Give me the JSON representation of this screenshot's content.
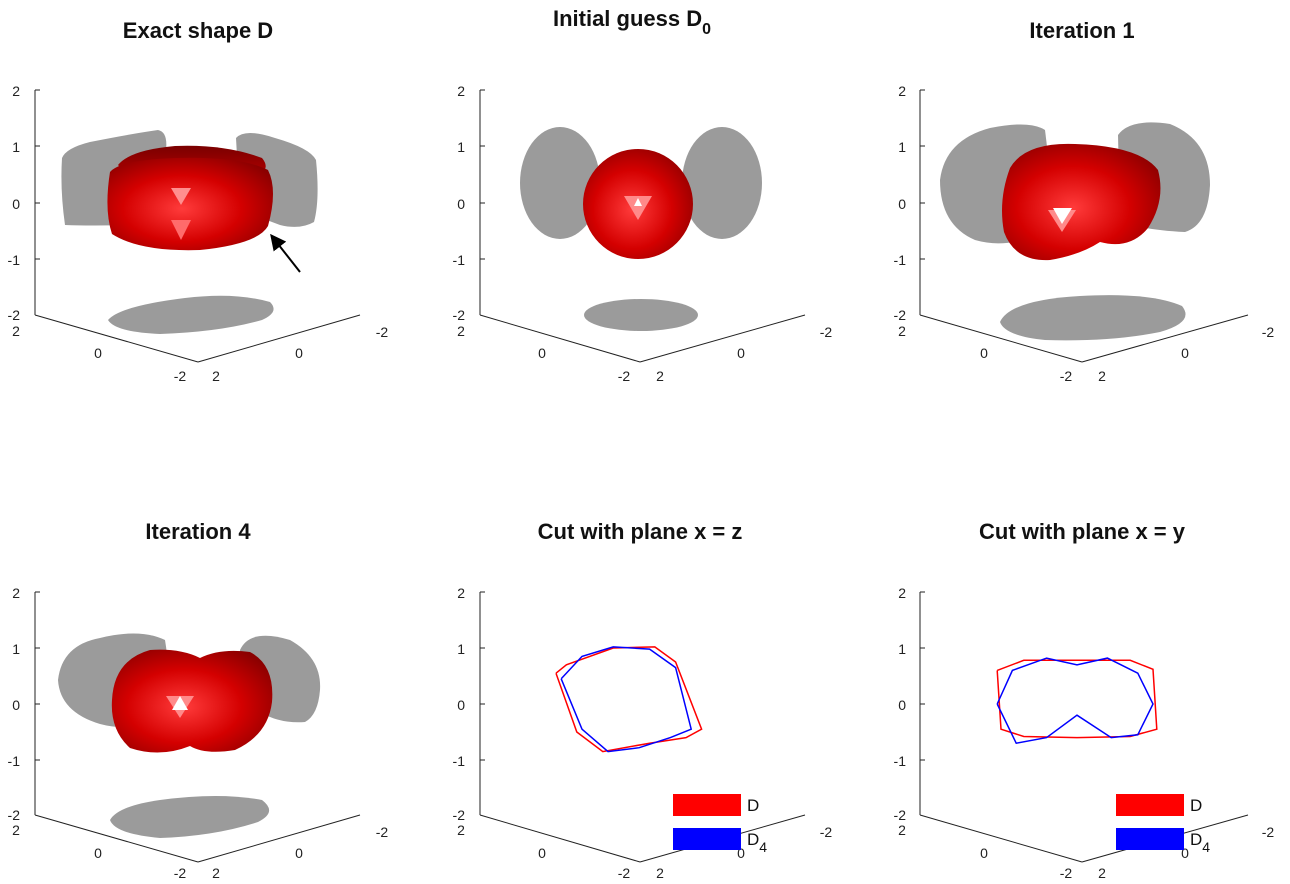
{
  "figure": {
    "panels": [
      {
        "title": "Exact shape D",
        "title_subscript": "",
        "type": "surface3d",
        "axes": {
          "x_ticks": [
            "2",
            "0",
            "-2"
          ],
          "y_ticks": [
            "-2",
            "0",
            "2"
          ],
          "z_ticks": [
            "2",
            "1",
            "0",
            "-1",
            "-2"
          ]
        },
        "shape": "exact",
        "has_arrow": true
      },
      {
        "title": "Initial guess D",
        "title_subscript": "0",
        "type": "surface3d",
        "axes": {
          "x_ticks": [
            "2",
            "0",
            "-2"
          ],
          "y_ticks": [
            "-2",
            "0",
            "2"
          ],
          "z_ticks": [
            "2",
            "1",
            "0",
            "-1",
            "-2"
          ]
        },
        "shape": "sphere",
        "has_arrow": false
      },
      {
        "title": "Iteration 1",
        "title_subscript": "",
        "type": "surface3d",
        "axes": {
          "x_ticks": [
            "2",
            "0",
            "-2"
          ],
          "y_ticks": [
            "-2",
            "0",
            "2"
          ],
          "z_ticks": [
            "2",
            "1",
            "0",
            "-1",
            "-2"
          ]
        },
        "shape": "iter1",
        "has_arrow": false
      },
      {
        "title": "Iteration 4",
        "title_subscript": "",
        "type": "surface3d",
        "axes": {
          "x_ticks": [
            "2",
            "0",
            "-2"
          ],
          "y_ticks": [
            "-2",
            "0",
            "2"
          ],
          "z_ticks": [
            "2",
            "1",
            "0",
            "-1",
            "-2"
          ]
        },
        "shape": "iter4",
        "has_arrow": false
      },
      {
        "title": "Cut with plane x = z",
        "title_subscript": "",
        "type": "cut",
        "axes": {
          "x_ticks": [
            "2",
            "0",
            "-2"
          ],
          "y_ticks": [
            "-2",
            "0",
            "2"
          ],
          "z_ticks": [
            "2",
            "1",
            "0",
            "-1",
            "-2"
          ]
        },
        "legend": [
          {
            "label": "D",
            "sub": "",
            "color": "#ff0000"
          },
          {
            "label": "D",
            "sub": "4",
            "color": "#0000ff"
          }
        ]
      },
      {
        "title": "Cut with plane x = y",
        "title_subscript": "",
        "type": "cut",
        "axes": {
          "x_ticks": [
            "2",
            "0",
            "-2"
          ],
          "y_ticks": [
            "-2",
            "0",
            "2"
          ],
          "z_ticks": [
            "2",
            "1",
            "0",
            "-1",
            "-2"
          ]
        },
        "legend": [
          {
            "label": "D",
            "sub": "",
            "color": "#ff0000"
          },
          {
            "label": "D",
            "sub": "4",
            "color": "#0000ff"
          }
        ]
      }
    ]
  },
  "chart_data": [
    {
      "type": "surface3d",
      "title": "Exact shape D",
      "zlim": [
        -2,
        2
      ],
      "xlim": [
        -2,
        2
      ],
      "ylim": [
        -2,
        2
      ],
      "z_ticks": [
        -2,
        -1,
        0,
        1,
        2
      ],
      "x_ticks": [
        -2,
        0,
        2
      ],
      "y_ticks": [
        -2,
        0,
        2
      ],
      "series": [
        {
          "name": "D",
          "color": "#cc0000"
        }
      ],
      "projections_color": "#999999"
    },
    {
      "type": "surface3d",
      "title": "Initial guess D0",
      "zlim": [
        -2,
        2
      ],
      "xlim": [
        -2,
        2
      ],
      "ylim": [
        -2,
        2
      ],
      "z_ticks": [
        -2,
        -1,
        0,
        1,
        2
      ],
      "series": [
        {
          "name": "D0",
          "color": "#cc0000"
        }
      ],
      "projections_color": "#999999"
    },
    {
      "type": "surface3d",
      "title": "Iteration 1",
      "zlim": [
        -2,
        2
      ],
      "xlim": [
        -2,
        2
      ],
      "ylim": [
        -2,
        2
      ],
      "z_ticks": [
        -2,
        -1,
        0,
        1,
        2
      ],
      "projections_color": "#999999"
    },
    {
      "type": "surface3d",
      "title": "Iteration 4",
      "zlim": [
        -2,
        2
      ],
      "xlim": [
        -2,
        2
      ],
      "ylim": [
        -2,
        2
      ],
      "z_ticks": [
        -2,
        -1,
        0,
        1,
        2
      ],
      "projections_color": "#999999"
    },
    {
      "type": "line",
      "title": "Cut with plane x = z",
      "zlim": [
        -2,
        2
      ],
      "z_ticks": [
        -2,
        -1,
        0,
        1,
        2
      ],
      "legend_position": "bottom-right",
      "series": [
        {
          "name": "D",
          "color": "#ff0000",
          "u": [
            -1.5,
            -1.3,
            -0.4,
            0.4,
            0.8,
            1.3,
            1.0,
            0.3,
            -0.6,
            -1.1,
            -1.5
          ],
          "z": [
            0.55,
            0.7,
            1.0,
            1.02,
            0.75,
            -0.45,
            -0.6,
            -0.7,
            -0.85,
            -0.5,
            0.55
          ]
        },
        {
          "name": "D4",
          "color": "#0000ff",
          "u": [
            -1.4,
            -1.0,
            -0.4,
            0.3,
            0.8,
            1.1,
            0.7,
            0.1,
            -0.5,
            -1.0,
            -1.4
          ],
          "z": [
            0.45,
            0.85,
            1.02,
            0.98,
            0.65,
            -0.45,
            -0.6,
            -0.78,
            -0.85,
            -0.45,
            0.45
          ]
        }
      ]
    },
    {
      "type": "line",
      "title": "Cut with plane x = y",
      "zlim": [
        -2,
        2
      ],
      "z_ticks": [
        -2,
        -1,
        0,
        1,
        2
      ],
      "legend_position": "bottom-right",
      "series": [
        {
          "name": "D",
          "color": "#ff0000",
          "u": [
            -2.1,
            -1.4,
            0.0,
            1.4,
            2.0,
            2.1,
            1.4,
            0.0,
            -1.4,
            -2.0,
            -2.1
          ],
          "z": [
            0.6,
            0.78,
            0.78,
            0.78,
            0.62,
            -0.45,
            -0.58,
            -0.6,
            -0.58,
            -0.45,
            0.6
          ]
        },
        {
          "name": "D4",
          "color": "#0000ff",
          "u": [
            -2.1,
            -1.7,
            -0.8,
            0.0,
            0.8,
            1.6,
            2.0,
            1.6,
            0.9,
            0.0,
            -0.8,
            -1.6,
            -2.1
          ],
          "z": [
            0.0,
            0.6,
            0.82,
            0.7,
            0.82,
            0.55,
            0.0,
            -0.55,
            -0.6,
            -0.2,
            -0.6,
            -0.7,
            0.0
          ]
        }
      ]
    }
  ]
}
